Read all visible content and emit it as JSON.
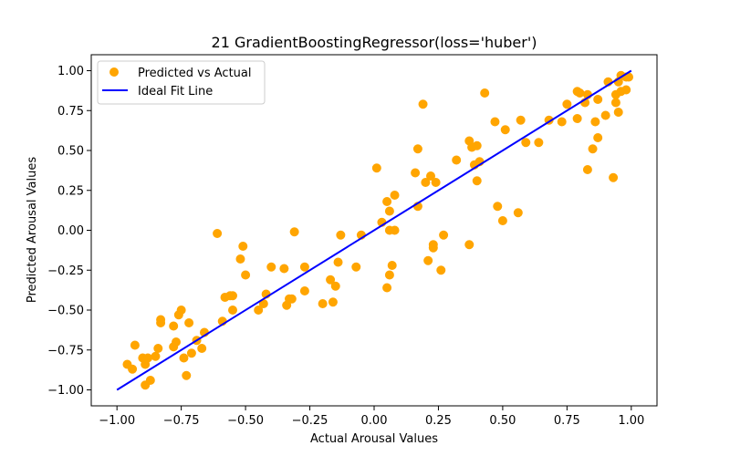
{
  "chart_data": {
    "type": "scatter",
    "title": "21 GradientBoostingRegressor(loss='huber')",
    "xlabel": "Actual Arousal Values",
    "ylabel": "Predicted Arousal Values",
    "xlim": [
      -1.1,
      1.1
    ],
    "ylim": [
      -1.1,
      1.1
    ],
    "grid": false,
    "legend_position": "top-left",
    "x_ticks": [
      -1.0,
      -0.75,
      -0.5,
      -0.25,
      0.0,
      0.25,
      0.5,
      0.75,
      1.0
    ],
    "x_tick_labels": [
      "−1.00",
      "−0.75",
      "−0.50",
      "−0.25",
      "0.00",
      "0.25",
      "0.50",
      "0.75",
      "1.00"
    ],
    "y_ticks": [
      -1.0,
      -0.75,
      -0.5,
      -0.25,
      0.0,
      0.25,
      0.5,
      0.75,
      1.0
    ],
    "y_tick_labels": [
      "−1.00",
      "−0.75",
      "−0.50",
      "−0.25",
      "0.00",
      "0.25",
      "0.50",
      "0.75",
      "1.00"
    ],
    "series": [
      {
        "name": "Predicted vs Actual",
        "kind": "scatter",
        "color": "#FFA500",
        "points": [
          [
            -0.96,
            -0.84
          ],
          [
            -0.94,
            -0.87
          ],
          [
            -0.93,
            -0.72
          ],
          [
            -0.9,
            -0.8
          ],
          [
            -0.89,
            -0.84
          ],
          [
            -0.89,
            -0.97
          ],
          [
            -0.88,
            -0.8
          ],
          [
            -0.87,
            -0.94
          ],
          [
            -0.85,
            -0.79
          ],
          [
            -0.84,
            -0.74
          ],
          [
            -0.83,
            -0.56
          ],
          [
            -0.83,
            -0.58
          ],
          [
            -0.78,
            -0.6
          ],
          [
            -0.78,
            -0.73
          ],
          [
            -0.77,
            -0.7
          ],
          [
            -0.76,
            -0.53
          ],
          [
            -0.75,
            -0.5
          ],
          [
            -0.74,
            -0.8
          ],
          [
            -0.73,
            -0.91
          ],
          [
            -0.72,
            -0.58
          ],
          [
            -0.71,
            -0.77
          ],
          [
            -0.69,
            -0.69
          ],
          [
            -0.67,
            -0.74
          ],
          [
            -0.66,
            -0.64
          ],
          [
            -0.61,
            -0.02
          ],
          [
            -0.59,
            -0.57
          ],
          [
            -0.58,
            -0.42
          ],
          [
            -0.56,
            -0.41
          ],
          [
            -0.55,
            -0.41
          ],
          [
            -0.55,
            -0.5
          ],
          [
            -0.52,
            -0.18
          ],
          [
            -0.51,
            -0.1
          ],
          [
            -0.5,
            -0.28
          ],
          [
            -0.45,
            -0.5
          ],
          [
            -0.43,
            -0.46
          ],
          [
            -0.42,
            -0.4
          ],
          [
            -0.4,
            -0.23
          ],
          [
            -0.35,
            -0.24
          ],
          [
            -0.34,
            -0.47
          ],
          [
            -0.33,
            -0.43
          ],
          [
            -0.32,
            -0.43
          ],
          [
            -0.31,
            -0.01
          ],
          [
            -0.27,
            -0.38
          ],
          [
            -0.27,
            -0.23
          ],
          [
            -0.2,
            -0.46
          ],
          [
            -0.17,
            -0.31
          ],
          [
            -0.16,
            -0.45
          ],
          [
            -0.15,
            -0.35
          ],
          [
            -0.14,
            -0.2
          ],
          [
            -0.13,
            -0.03
          ],
          [
            -0.07,
            -0.23
          ],
          [
            -0.05,
            -0.03
          ],
          [
            0.01,
            0.39
          ],
          [
            0.03,
            0.05
          ],
          [
            0.05,
            -0.36
          ],
          [
            0.05,
            0.18
          ],
          [
            0.06,
            0.0
          ],
          [
            0.06,
            0.12
          ],
          [
            0.06,
            -0.28
          ],
          [
            0.07,
            -0.22
          ],
          [
            0.08,
            0.0
          ],
          [
            0.08,
            0.22
          ],
          [
            0.16,
            0.36
          ],
          [
            0.17,
            0.51
          ],
          [
            0.17,
            0.15
          ],
          [
            0.19,
            0.79
          ],
          [
            0.2,
            0.3
          ],
          [
            0.21,
            -0.19
          ],
          [
            0.22,
            0.34
          ],
          [
            0.23,
            -0.09
          ],
          [
            0.23,
            -0.11
          ],
          [
            0.24,
            0.3
          ],
          [
            0.26,
            -0.25
          ],
          [
            0.27,
            -0.03
          ],
          [
            0.32,
            0.44
          ],
          [
            0.37,
            -0.09
          ],
          [
            0.37,
            0.56
          ],
          [
            0.38,
            0.52
          ],
          [
            0.39,
            0.41
          ],
          [
            0.4,
            0.53
          ],
          [
            0.4,
            0.31
          ],
          [
            0.41,
            0.43
          ],
          [
            0.43,
            0.86
          ],
          [
            0.47,
            0.68
          ],
          [
            0.48,
            0.15
          ],
          [
            0.5,
            0.06
          ],
          [
            0.51,
            0.63
          ],
          [
            0.56,
            0.11
          ],
          [
            0.57,
            0.69
          ],
          [
            0.59,
            0.55
          ],
          [
            0.64,
            0.55
          ],
          [
            0.68,
            0.69
          ],
          [
            0.73,
            0.68
          ],
          [
            0.75,
            0.79
          ],
          [
            0.79,
            0.7
          ],
          [
            0.79,
            0.87
          ],
          [
            0.8,
            0.86
          ],
          [
            0.82,
            0.8
          ],
          [
            0.83,
            0.85
          ],
          [
            0.83,
            0.38
          ],
          [
            0.85,
            0.51
          ],
          [
            0.86,
            0.68
          ],
          [
            0.87,
            0.58
          ],
          [
            0.87,
            0.82
          ],
          [
            0.9,
            0.72
          ],
          [
            0.91,
            0.93
          ],
          [
            0.93,
            0.33
          ],
          [
            0.94,
            0.8
          ],
          [
            0.94,
            0.85
          ],
          [
            0.95,
            0.74
          ],
          [
            0.95,
            0.93
          ],
          [
            0.96,
            0.87
          ],
          [
            0.96,
            0.97
          ],
          [
            0.98,
            0.88
          ],
          [
            0.98,
            0.96
          ],
          [
            0.99,
            0.96
          ]
        ]
      },
      {
        "name": "Ideal Fit Line",
        "kind": "line",
        "color": "#0000FF",
        "points": [
          [
            -1.0,
            -1.0
          ],
          [
            1.0,
            1.0
          ]
        ]
      }
    ]
  }
}
